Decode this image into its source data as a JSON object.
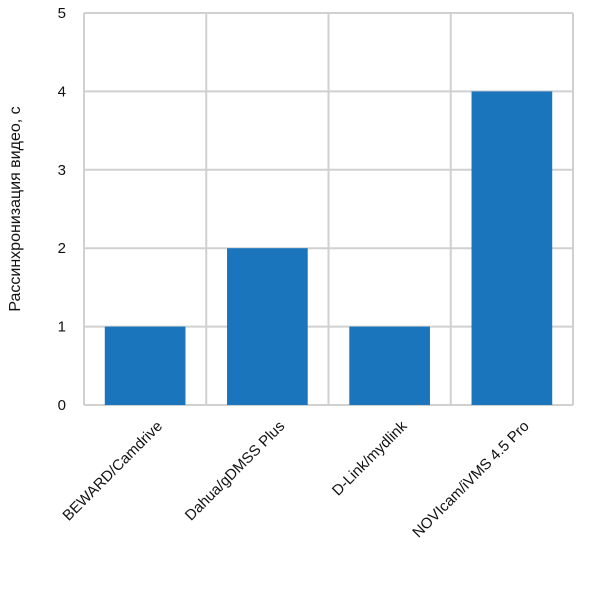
{
  "chart_data": {
    "type": "bar",
    "categories": [
      "BEWARD/Camdrive",
      "Dahua/gDMSS Plus",
      "D-Link/mydlink",
      "NOVIcam/iVMS 4.5 Pro"
    ],
    "values": [
      1,
      2,
      1,
      4
    ],
    "ylabel": "Рассинхронизация  видео, с",
    "ylim": [
      0,
      5
    ],
    "yticks": [
      0,
      1,
      2,
      3,
      4,
      5
    ],
    "grid": true,
    "bar_color": "#1b75bc",
    "grid_color": "#d0d0d0"
  }
}
